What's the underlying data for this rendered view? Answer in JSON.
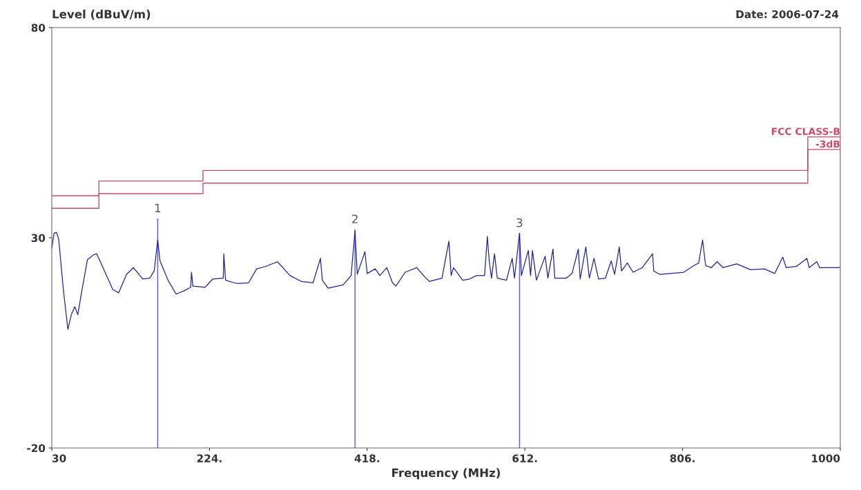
{
  "chart_data": {
    "type": "line",
    "ylabel": "Level (dBuV/m)",
    "xlabel": "Frequency (MHz)",
    "xlim": [
      30,
      1000
    ],
    "ylim": [
      -20,
      80
    ],
    "xticks": [
      30,
      {
        "value": 224,
        "label": "224."
      },
      {
        "value": 418,
        "label": "418."
      },
      {
        "value": 612,
        "label": "612."
      },
      {
        "value": 806,
        "label": "806."
      },
      1000
    ],
    "yticks": [
      -20,
      30,
      80
    ],
    "grid": false,
    "legend": false,
    "annotations": [
      "Date: 2006-07-24",
      {
        "text": "1",
        "x": 160.3,
        "y": 34.6
      },
      {
        "text": "2",
        "x": 403,
        "y": 32
      },
      {
        "text": "3",
        "x": 605.4,
        "y": 31.1
      }
    ],
    "series": [
      {
        "color": "#20209a",
        "x": [
          30,
          32.8,
          35.7,
          38.5,
          44.2,
          49.8,
          54,
          58.3,
          62,
          66.8,
          73.9,
          81,
          85.2,
          92.3,
          105,
          112.2,
          122,
          130.5,
          141.9,
          150.4,
          156,
          160.3,
          163.1,
          173,
          183,
          192.9,
          200.8,
          201.9,
          203.6,
          218.4,
          228.2,
          241,
          241.6,
          243.8,
          258,
          272.1,
          282,
          293.4,
          307.6,
          323.1,
          337.3,
          351.4,
          360.5,
          362.8,
          369.9,
          388.3,
          398.2,
          403,
          405.8,
          415.2,
          418,
          427.9,
          433.6,
          442.1,
          449.1,
          453.4,
          464.7,
          478.9,
          487.4,
          494.4,
          510,
          518.5,
          521.3,
          524.2,
          535.5,
          544,
          552.5,
          562.4,
          565.8,
          568,
          570.9,
          574.6,
          578,
          589.3,
          596.4,
          599.2,
          605.4,
          607.7,
          616.2,
          619,
          621.3,
          626.2,
          636.9,
          640.3,
          646.6,
          648.8,
          663,
          670,
          677.7,
          680,
          687,
          691.3,
          697,
          702.6,
          711.1,
          718.2,
          722.4,
          728.1,
          730.9,
          738,
          745.1,
          756.4,
          769.1,
          770.5,
          777.6,
          790.4,
          807.4,
          820.1,
          825.8,
          830.6,
          834.3,
          841.4,
          848.5,
          855.6,
          872.6,
          889.6,
          906.6,
          919.3,
          929.2,
          933.4,
          946.1,
          958.9,
          961.8,
          971.1,
          974.6,
          997.2,
          1000
        ],
        "values": [
          27.5,
          31.1,
          31.3,
          29.7,
          17.7,
          8.2,
          11.7,
          13.6,
          11.7,
          17.2,
          24.8,
          25.9,
          26.2,
          23.2,
          17.7,
          16.9,
          21.3,
          22.9,
          20.2,
          20.4,
          22.1,
          29.5,
          24.5,
          19.9,
          16.6,
          17.4,
          18.2,
          21.8,
          18.5,
          18.2,
          20.2,
          20.4,
          26.2,
          19.9,
          19.1,
          19.3,
          22.6,
          23.2,
          24.3,
          21,
          19.6,
          19.3,
          25.1,
          19.9,
          18,
          18.8,
          21,
          31.6,
          21.3,
          26.7,
          21.5,
          22.6,
          21,
          22.9,
          19.3,
          18.5,
          21.8,
          22.9,
          21,
          19.6,
          20.4,
          29.2,
          21,
          22.9,
          19.9,
          20.2,
          21,
          21,
          30.3,
          24.8,
          20.4,
          26.2,
          20.4,
          19.9,
          25.1,
          20.4,
          31.1,
          21,
          27,
          21,
          27,
          19.9,
          25.6,
          20.4,
          27.3,
          20.4,
          20.4,
          21.5,
          27.3,
          20.2,
          27.8,
          20.4,
          25.1,
          20.2,
          20.4,
          24.5,
          21.3,
          27.8,
          22.1,
          24,
          21.8,
          22.9,
          26.2,
          22.1,
          21.3,
          21.5,
          21.8,
          23.4,
          24,
          29.5,
          23.4,
          22.9,
          24.3,
          22.9,
          23.8,
          22.4,
          22.6,
          21.5,
          25.4,
          22.9,
          23.2,
          25.1,
          22.9,
          24.3,
          22.9,
          22.9,
          23
        ]
      },
      {
        "type": "step",
        "name": "FCC CLASS-B",
        "color": "#d04a6a",
        "x": [
          30,
          88,
          216,
          960,
          1000
        ],
        "values": [
          40,
          43.5,
          46,
          54,
          54
        ]
      },
      {
        "type": "step",
        "name": "-3dB",
        "color": "#d04a6a",
        "x": [
          30,
          88,
          216,
          960,
          1000
        ],
        "values": [
          37,
          40.5,
          43,
          51,
          51
        ]
      },
      {
        "type": "bar",
        "color": "#5a5ae0",
        "x": [
          160.3,
          403,
          605.4
        ],
        "base": [
          -20,
          -20,
          -20
        ],
        "values": [
          54.6,
          52,
          51.1
        ]
      }
    ]
  }
}
